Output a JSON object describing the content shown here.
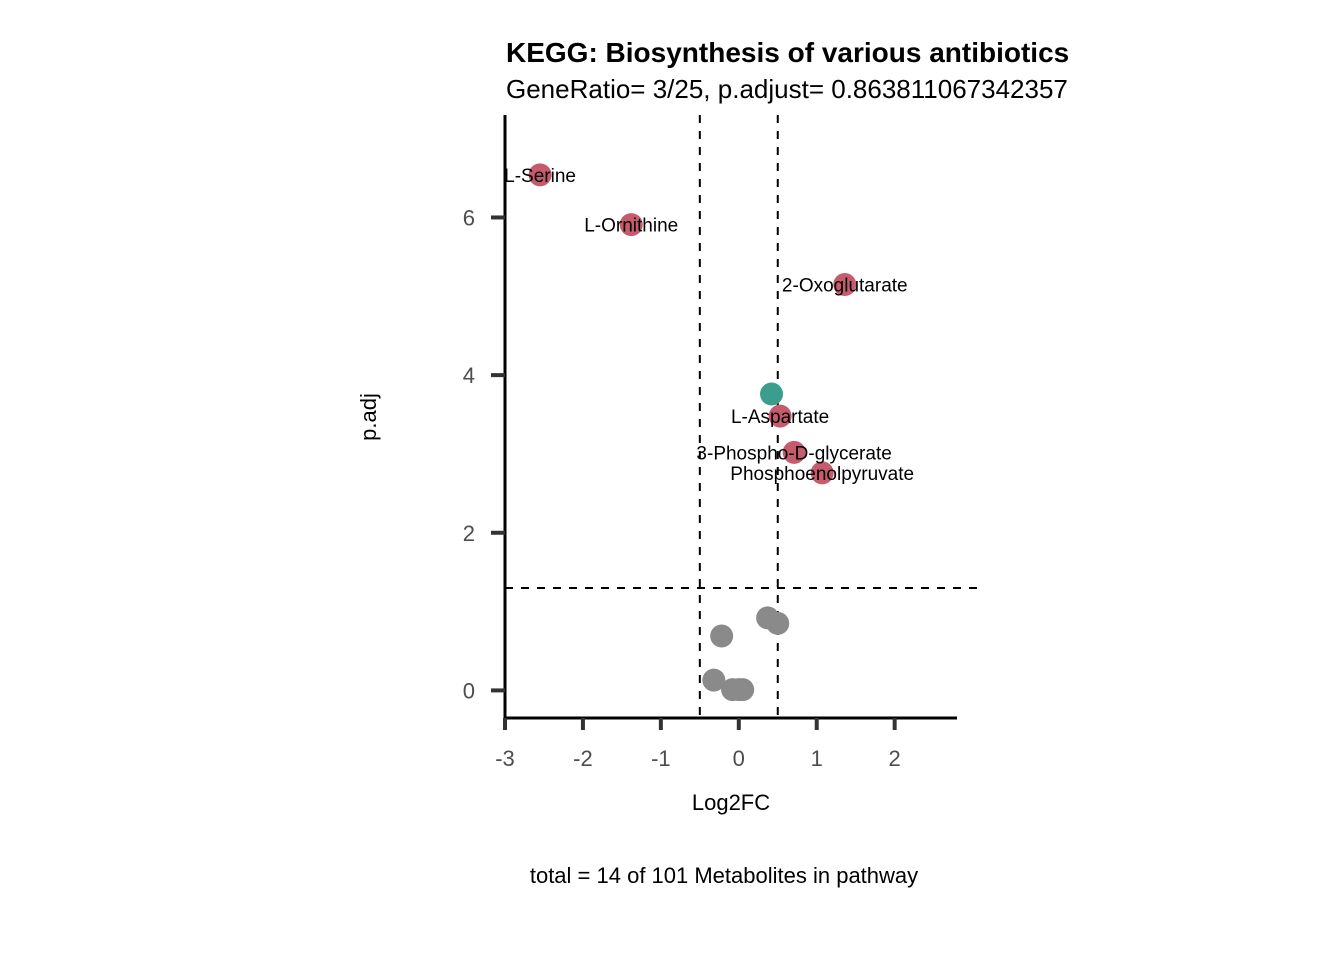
{
  "chart_data": {
    "type": "scatter",
    "title": "KEGG: Biosynthesis of various antibiotics",
    "subtitle": "GeneRatio= 3/25, p.adjust= 0.863811067342357",
    "xlabel": "Log2FC",
    "ylabel": "p.adj",
    "caption": "total = 14 of 101 Metabolites in pathway",
    "xlim": [
      -3,
      2.8
    ],
    "ylim": [
      -0.35,
      7.3
    ],
    "x_ticks": [
      -3,
      -2,
      -1,
      0,
      1,
      2
    ],
    "y_ticks": [
      0,
      2,
      4,
      6
    ],
    "x_tick_labels": [
      "-3",
      "-2",
      "-1",
      "0",
      "1",
      "2"
    ],
    "y_tick_labels": [
      "0",
      "2",
      "4",
      "6"
    ],
    "grid": false,
    "reference_lines": {
      "vertical": [
        -0.5,
        0.5
      ],
      "horizontal": [
        1.3
      ]
    },
    "colors": {
      "significant": "#c75b6e",
      "highlight": "#3a9e8f",
      "not_significant": "#8a8a8a"
    },
    "points": [
      {
        "label": "L-Serine",
        "x": -2.55,
        "y": 6.54,
        "group": "significant"
      },
      {
        "label": "L-Ornithine",
        "x": -1.38,
        "y": 5.91,
        "group": "significant"
      },
      {
        "label": "2-Oxoglutarate",
        "x": 1.36,
        "y": 5.15,
        "group": "significant"
      },
      {
        "label": "",
        "x": 0.42,
        "y": 3.76,
        "group": "highlight"
      },
      {
        "label": "L-Aspartate",
        "x": 0.53,
        "y": 3.48,
        "group": "significant"
      },
      {
        "label": "3-Phospho-D-glycerate",
        "x": 0.71,
        "y": 3.02,
        "group": "significant"
      },
      {
        "label": "Phosphoenolpyruvate",
        "x": 1.07,
        "y": 2.76,
        "group": "significant"
      },
      {
        "label": "",
        "x": -0.22,
        "y": 0.69,
        "group": "not_significant"
      },
      {
        "label": "",
        "x": -0.32,
        "y": 0.13,
        "group": "not_significant"
      },
      {
        "label": "",
        "x": -0.08,
        "y": 0.01,
        "group": "not_significant"
      },
      {
        "label": "",
        "x": 0.0,
        "y": 0.01,
        "group": "not_significant"
      },
      {
        "label": "",
        "x": 0.05,
        "y": 0.01,
        "group": "not_significant"
      },
      {
        "label": "",
        "x": 0.37,
        "y": 0.92,
        "group": "not_significant"
      },
      {
        "label": "",
        "x": 0.5,
        "y": 0.85,
        "group": "not_significant"
      }
    ]
  }
}
